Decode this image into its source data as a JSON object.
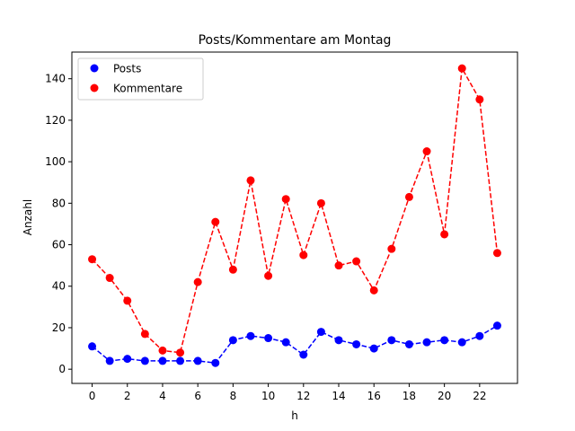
{
  "chart_data": {
    "type": "line",
    "title": "Posts/Kommentare am Montag",
    "xlabel": "h",
    "ylabel": "Anzahl",
    "x": [
      0,
      1,
      2,
      3,
      4,
      5,
      6,
      7,
      8,
      9,
      10,
      11,
      12,
      13,
      14,
      15,
      16,
      17,
      18,
      19,
      20,
      21,
      22,
      23
    ],
    "xlim": [
      -1.15,
      24.15
    ],
    "ylim": [
      -6.85,
      152.85
    ],
    "xticks": [
      0,
      2,
      4,
      6,
      8,
      10,
      12,
      14,
      16,
      18,
      20,
      22
    ],
    "yticks": [
      0,
      20,
      40,
      60,
      80,
      100,
      120,
      140
    ],
    "grid": false,
    "legend_position": "top-left",
    "series": [
      {
        "name": "Posts",
        "color": "#0000ff",
        "line_style": "dashed",
        "marker": "circle",
        "values": [
          11,
          4,
          5,
          4,
          4,
          4,
          4,
          3,
          14,
          16,
          15,
          13,
          7,
          18,
          14,
          12,
          10,
          14,
          12,
          13,
          14,
          13,
          16,
          21
        ]
      },
      {
        "name": "Kommentare",
        "color": "#ff0000",
        "line_style": "dashed",
        "marker": "circle",
        "values": [
          53,
          44,
          33,
          17,
          9,
          8,
          42,
          71,
          48,
          91,
          45,
          82,
          55,
          80,
          50,
          52,
          38,
          58,
          83,
          105,
          65,
          145,
          130,
          56
        ]
      }
    ]
  }
}
